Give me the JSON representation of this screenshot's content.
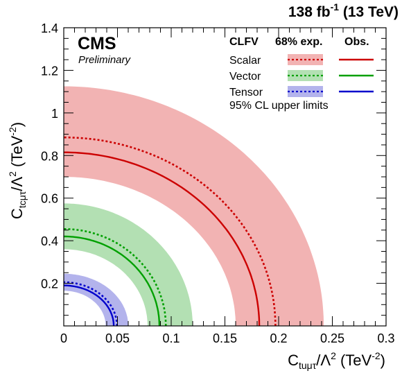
{
  "header": {
    "lumi": "138",
    "lumi_unit": "fb",
    "lumi_exp": "-1",
    "energy": "(13 TeV)",
    "experiment": "CMS",
    "status": "Preliminary"
  },
  "chart_data": {
    "type": "area",
    "xlabel": {
      "main": "C",
      "sub": "tuμτ",
      "rest": "/Λ",
      "sup": "2",
      "unit": " (TeV",
      "unit_sup": "-2",
      "close": ")"
    },
    "ylabel": {
      "main": "C",
      "sub": "tcμτ",
      "rest": "/Λ",
      "sup": "2",
      "unit": " (TeV",
      "unit_sup": "-2",
      "close": ")"
    },
    "xlim": [
      0,
      0.3
    ],
    "ylim": [
      0,
      1.4
    ],
    "xticks": [
      "0",
      "0.05",
      "0.1",
      "0.15",
      "0.2",
      "0.25",
      "0.3"
    ],
    "yticks": [
      "0.2",
      "0.4",
      "0.6",
      "0.8",
      "1",
      "1.2",
      "1.4"
    ],
    "legend": {
      "header_label": "CLFV",
      "header_exp": "68% exp.",
      "header_obs": "Obs.",
      "footer": "95% CL upper limits",
      "placement": "top-right"
    },
    "series": [
      {
        "name": "Scalar",
        "color": "#cc0000",
        "band_color": "#f2b3b3",
        "expected": {
          "x": 0.197,
          "y": 0.885
        },
        "band_low": {
          "x": 0.16,
          "y": 0.7
        },
        "band_high": {
          "x": 0.242,
          "y": 1.125
        },
        "observed": {
          "x": 0.182,
          "y": 0.815
        }
      },
      {
        "name": "Vector",
        "color": "#00a000",
        "band_color": "#b3e0b3",
        "expected": {
          "x": 0.095,
          "y": 0.455
        },
        "band_low": {
          "x": 0.078,
          "y": 0.36
        },
        "band_high": {
          "x": 0.12,
          "y": 0.575
        },
        "observed": {
          "x": 0.089,
          "y": 0.42
        }
      },
      {
        "name": "Tensor",
        "color": "#0000cc",
        "band_color": "#b3b3ec",
        "expected": {
          "x": 0.0495,
          "y": 0.205
        },
        "band_low": {
          "x": 0.039,
          "y": 0.165
        },
        "band_high": {
          "x": 0.06,
          "y": 0.245
        },
        "observed": {
          "x": 0.0465,
          "y": 0.19
        }
      }
    ]
  }
}
